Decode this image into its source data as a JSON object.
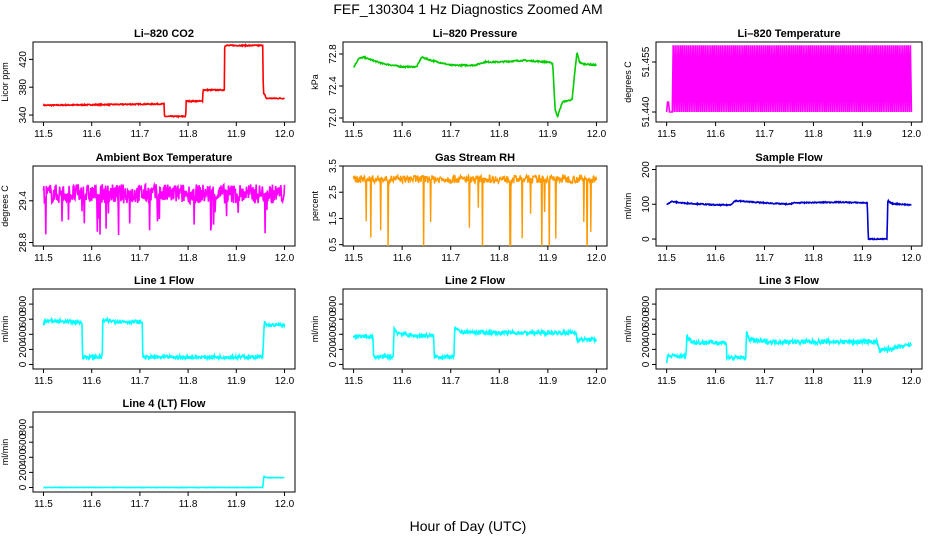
{
  "title": "FEF_130304  1 Hz Diagnostics Zoomed AM",
  "xlabel": "Hour of Day (UTC)",
  "chart_data": [
    {
      "type": "line",
      "title": "Li–820 CO2",
      "ylabel": "Licor ppm",
      "color": "#ff0000",
      "xlim": [
        11.5,
        12.0
      ],
      "ylim": [
        330,
        445
      ],
      "yticks": [
        "340",
        "380",
        "420"
      ],
      "ytickvals": [
        340,
        380,
        420
      ],
      "xticks": [
        "11.5",
        "11.6",
        "11.7",
        "11.8",
        "11.9",
        "12.0"
      ],
      "noise": 0.8,
      "series": [
        {
          "name": "CO2",
          "x": [
            11.5,
            11.75,
            11.751,
            11.795,
            11.796,
            11.83,
            11.831,
            11.875,
            11.876,
            11.955,
            11.956,
            11.96,
            11.961,
            12.0
          ],
          "y": [
            354,
            356,
            338,
            338,
            360,
            360,
            376,
            376,
            440,
            440,
            372,
            368,
            364,
            364
          ]
        }
      ]
    },
    {
      "type": "line",
      "title": "Li–820 Pressure",
      "ylabel": "kPa",
      "color": "#00cc00",
      "xlim": [
        11.5,
        12.0
      ],
      "ylim": [
        71.95,
        72.95
      ],
      "yticks": [
        "72.0",
        "72.4",
        "72.8"
      ],
      "ytickvals": [
        72.0,
        72.4,
        72.8
      ],
      "xticks": [
        "11.5",
        "11.6",
        "11.7",
        "11.8",
        "11.9",
        "12.0"
      ],
      "noise": 0.008,
      "series": [
        {
          "name": "Pressure",
          "x": [
            11.5,
            11.51,
            11.52,
            11.54,
            11.56,
            11.6,
            11.63,
            11.64,
            11.66,
            11.7,
            11.75,
            11.77,
            11.8,
            11.85,
            11.9,
            11.91,
            11.915,
            11.92,
            11.93,
            11.95,
            11.955,
            11.96,
            11.965,
            11.97,
            12.0
          ],
          "y": [
            72.63,
            72.74,
            72.76,
            72.72,
            72.68,
            72.64,
            72.64,
            72.76,
            72.72,
            72.66,
            72.66,
            72.7,
            72.7,
            72.72,
            72.7,
            72.68,
            72.1,
            72.02,
            72.2,
            72.23,
            72.55,
            72.82,
            72.7,
            72.68,
            72.66
          ]
        }
      ]
    },
    {
      "type": "line",
      "title": "Li–820 Temperature",
      "ylabel": "degrees C",
      "color": "#ff00ff",
      "xlim": [
        11.5,
        12.0
      ],
      "ylim": [
        51.437,
        51.461
      ],
      "yticks": [
        "51.440",
        "51.455"
      ],
      "ytickvals": [
        51.44,
        51.455
      ],
      "xticks": [
        "11.5",
        "11.6",
        "11.7",
        "11.8",
        "11.9",
        "12.0"
      ],
      "noise": 0,
      "series": [
        {
          "name": "Temperature",
          "x": [
            11.5,
            12.0
          ],
          "y": [
            51.44,
            51.46
          ]
        }
      ]
    },
    {
      "type": "line",
      "title": "Ambient Box Temperature",
      "ylabel": "degrees C",
      "color": "#ff00ff",
      "xlim": [
        11.5,
        12.0
      ],
      "ylim": [
        28.75,
        29.9
      ],
      "yticks": [
        "28.8",
        "29.4"
      ],
      "ytickvals": [
        28.8,
        29.4
      ],
      "xticks": [
        "11.5",
        "11.6",
        "11.7",
        "11.8",
        "11.9",
        "12.0"
      ],
      "noise": 0.14,
      "series": [
        {
          "name": "Box Temp",
          "x": [
            11.5,
            12.0
          ],
          "y": [
            29.5,
            29.5
          ]
        }
      ]
    },
    {
      "type": "line",
      "title": "Gas Stream RH",
      "ylabel": "percent",
      "color": "#ff9900",
      "xlim": [
        11.5,
        12.0
      ],
      "ylim": [
        0.45,
        3.5
      ],
      "yticks": [
        "0.5",
        "1.5",
        "2.5",
        "3.5"
      ],
      "ytickvals": [
        0.5,
        1.5,
        2.5,
        3.5
      ],
      "xticks": [
        "11.5",
        "11.6",
        "11.7",
        "11.8",
        "11.9",
        "12.0"
      ],
      "noise": 0.15,
      "series": [
        {
          "name": "RH",
          "x": [
            11.5,
            12.0
          ],
          "y": [
            3.0,
            3.0
          ]
        }
      ]
    },
    {
      "type": "line",
      "title": "Sample Flow",
      "ylabel": "ml/min",
      "color": "#0000cc",
      "xlim": [
        11.5,
        12.0
      ],
      "ylim": [
        -20,
        210
      ],
      "yticks": [
        "0",
        "100",
        "200"
      ],
      "ytickvals": [
        0,
        100,
        200
      ],
      "xticks": [
        "11.5",
        "11.6",
        "11.7",
        "11.8",
        "11.9",
        "12.0"
      ],
      "noise": 1.5,
      "series": [
        {
          "name": "Sample Flow",
          "x": [
            11.5,
            11.51,
            11.53,
            11.6,
            11.63,
            11.64,
            11.7,
            11.75,
            11.76,
            11.85,
            11.91,
            11.912,
            11.95,
            11.952,
            11.96,
            12.0
          ],
          "y": [
            100,
            108,
            104,
            98,
            98,
            110,
            104,
            100,
            104,
            106,
            104,
            0,
            0,
            110,
            102,
            98
          ]
        }
      ]
    },
    {
      "type": "line",
      "title": "Line 1 Flow",
      "ylabel": "ml/min",
      "color": "#00ffff",
      "xlim": [
        11.5,
        12.0
      ],
      "ylim": [
        -60,
        1000
      ],
      "yticks": [
        "0",
        "200",
        "400",
        "600",
        "800"
      ],
      "ytickvals": [
        0,
        200,
        400,
        600,
        800
      ],
      "xticks": [
        "11.5",
        "11.6",
        "11.7",
        "11.8",
        "11.9",
        "12.0"
      ],
      "noise": 25,
      "series": [
        {
          "name": "Line 1",
          "x": [
            11.5,
            11.502,
            11.58,
            11.581,
            11.622,
            11.623,
            11.705,
            11.706,
            11.955,
            11.958,
            11.963,
            12.0
          ],
          "y": [
            520,
            580,
            560,
            100,
            100,
            580,
            560,
            95,
            100,
            560,
            520,
            520
          ]
        }
      ]
    },
    {
      "type": "line",
      "title": "Line 2 Flow",
      "ylabel": "ml/min",
      "color": "#00ffff",
      "xlim": [
        11.5,
        12.0
      ],
      "ylim": [
        -60,
        1000
      ],
      "yticks": [
        "0",
        "200",
        "400",
        "600",
        "800"
      ],
      "ytickvals": [
        0,
        200,
        400,
        600,
        800
      ],
      "xticks": [
        "11.5",
        "11.6",
        "11.7",
        "11.8",
        "11.9",
        "12.0"
      ],
      "noise": 25,
      "series": [
        {
          "name": "Line 2",
          "x": [
            11.5,
            11.54,
            11.541,
            11.582,
            11.583,
            11.59,
            11.622,
            11.66,
            11.665,
            11.666,
            11.707,
            11.708,
            11.72,
            11.8,
            11.95,
            11.958,
            11.96,
            12.0
          ],
          "y": [
            370,
            370,
            100,
            100,
            480,
            420,
            380,
            380,
            380,
            100,
            100,
            480,
            430,
            420,
            420,
            420,
            330,
            330
          ]
        }
      ]
    },
    {
      "type": "line",
      "title": "Line 3 Flow",
      "ylabel": "ml/min",
      "color": "#00ffff",
      "xlim": [
        11.5,
        12.0
      ],
      "ylim": [
        -60,
        1000
      ],
      "yticks": [
        "0",
        "200",
        "400",
        "600",
        "800"
      ],
      "ytickvals": [
        0,
        200,
        400,
        600,
        800
      ],
      "xticks": [
        "11.5",
        "11.6",
        "11.7",
        "11.8",
        "11.9",
        "12.0"
      ],
      "noise": 30,
      "series": [
        {
          "name": "Line 3",
          "x": [
            11.5,
            11.502,
            11.54,
            11.541,
            11.545,
            11.56,
            11.622,
            11.623,
            11.662,
            11.663,
            11.67,
            11.7,
            11.92,
            11.93,
            11.935,
            12.0
          ],
          "y": [
            40,
            110,
            110,
            400,
            330,
            290,
            290,
            90,
            90,
            420,
            330,
            300,
            300,
            300,
            180,
            260
          ]
        }
      ]
    },
    {
      "type": "line",
      "title": "Line 4 (LT) Flow",
      "ylabel": "ml/min",
      "color": "#00ffff",
      "xlim": [
        11.5,
        12.0
      ],
      "ylim": [
        -60,
        1000
      ],
      "yticks": [
        "0",
        "200",
        "400",
        "600",
        "800"
      ],
      "ytickvals": [
        0,
        200,
        400,
        600,
        800
      ],
      "xticks": [
        "11.5",
        "11.6",
        "11.7",
        "11.8",
        "11.9",
        "12.0"
      ],
      "noise": 3,
      "series": [
        {
          "name": "Line 4",
          "x": [
            11.5,
            11.955,
            11.957,
            11.962,
            12.0
          ],
          "y": [
            0,
            0,
            150,
            130,
            130
          ]
        }
      ]
    }
  ]
}
